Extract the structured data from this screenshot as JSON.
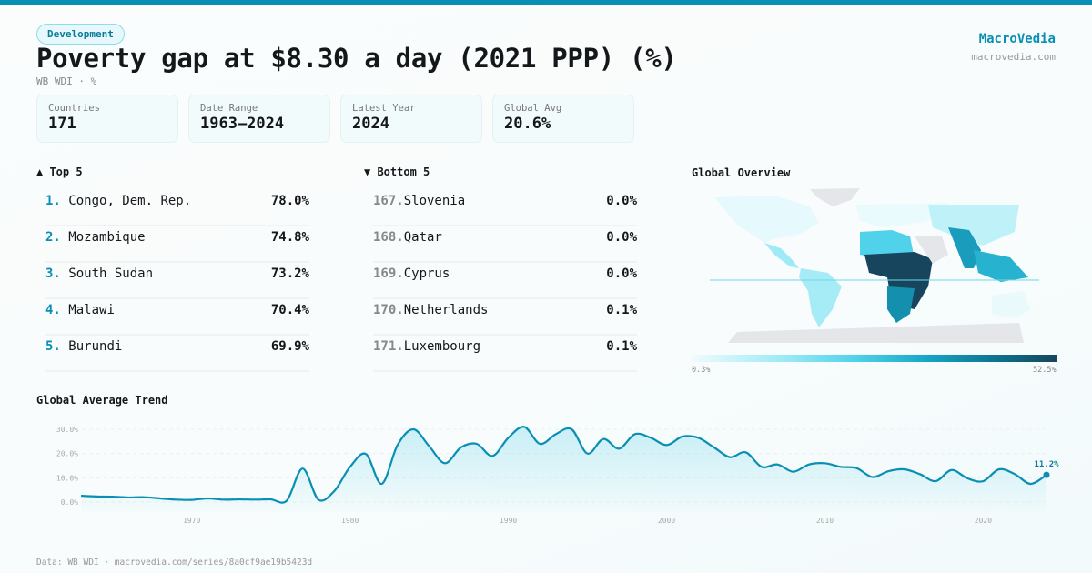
{
  "header": {
    "category": "Development",
    "title": "Poverty gap at $8.30 a day (2021 PPP) (%)",
    "subtitle": "WB WDI · %",
    "brand": "MacroVedia",
    "domain": "macrovedia.com"
  },
  "stats": [
    {
      "label": "Countries",
      "value": "171"
    },
    {
      "label": "Date Range",
      "value": "1963–2024"
    },
    {
      "label": "Latest Year",
      "value": "2024"
    },
    {
      "label": "Global Avg",
      "value": "20.6%"
    }
  ],
  "top": {
    "title": "▲ Top 5",
    "items": [
      {
        "rank": "1.",
        "name": "Congo, Dem. Rep.",
        "value": "78.0%"
      },
      {
        "rank": "2.",
        "name": "Mozambique",
        "value": "74.8%"
      },
      {
        "rank": "3.",
        "name": "South Sudan",
        "value": "73.2%"
      },
      {
        "rank": "4.",
        "name": "Malawi",
        "value": "70.4%"
      },
      {
        "rank": "5.",
        "name": "Burundi",
        "value": "69.9%"
      }
    ]
  },
  "bottom": {
    "title": "▼ Bottom 5",
    "items": [
      {
        "rank": "167.",
        "name": "Slovenia",
        "value": "0.0%"
      },
      {
        "rank": "168.",
        "name": "Qatar",
        "value": "0.0%"
      },
      {
        "rank": "169.",
        "name": "Cyprus",
        "value": "0.0%"
      },
      {
        "rank": "170.",
        "name": "Netherlands",
        "value": "0.1%"
      },
      {
        "rank": "171.",
        "name": "Luxembourg",
        "value": "0.1%"
      }
    ]
  },
  "map": {
    "title": "Global Overview",
    "legend_min": "0.3%",
    "legend_max": "52.5%",
    "colors": {
      "low": "#eefcfd",
      "high": "#17455d",
      "nodata": "#e4e6ea"
    }
  },
  "footer": "Data: WB WDI · macrovedia.com/series/8a0cf9ae19b5423d",
  "chart_data": {
    "type": "area",
    "title": "Global Average Trend",
    "color": "#0a8fb4",
    "x": [
      1963,
      1964,
      1965,
      1966,
      1967,
      1968,
      1969,
      1970,
      1971,
      1972,
      1973,
      1974,
      1975,
      1976,
      1977,
      1978,
      1979,
      1980,
      1981,
      1982,
      1983,
      1984,
      1985,
      1986,
      1987,
      1988,
      1989,
      1990,
      1991,
      1992,
      1993,
      1994,
      1995,
      1996,
      1997,
      1998,
      1999,
      2000,
      2001,
      2002,
      2003,
      2004,
      2005,
      2006,
      2007,
      2008,
      2009,
      2010,
      2011,
      2012,
      2013,
      2014,
      2015,
      2016,
      2017,
      2018,
      2019,
      2020,
      2021,
      2022,
      2023,
      2024
    ],
    "y": [
      2.6,
      2.3,
      2.2,
      1.9,
      2.0,
      1.5,
      1.0,
      0.9,
      1.5,
      1.0,
      1.1,
      1.0,
      1.1,
      0.6,
      13.8,
      1.0,
      4.5,
      14.5,
      19.8,
      7.5,
      23.5,
      30.0,
      23.0,
      16.0,
      22.5,
      24.0,
      19.0,
      26.5,
      31.0,
      24.0,
      28.0,
      30.0,
      20.0,
      26.0,
      22.0,
      28.0,
      26.5,
      23.5,
      27.0,
      26.5,
      22.5,
      18.5,
      20.5,
      14.5,
      15.5,
      12.5,
      15.5,
      16.0,
      14.5,
      14.0,
      10.3,
      12.7,
      13.5,
      11.5,
      8.6,
      13.2,
      9.8,
      8.6,
      13.5,
      11.5,
      7.5,
      11.2
    ],
    "yticks": [
      "0.0%",
      "10.0%",
      "20.0%",
      "30.0%"
    ],
    "ytick_values": [
      0,
      10,
      20,
      30
    ],
    "xticks": [
      1970,
      1980,
      1990,
      2000,
      2010,
      2020
    ],
    "last_label": "11.2%",
    "grid": true
  }
}
